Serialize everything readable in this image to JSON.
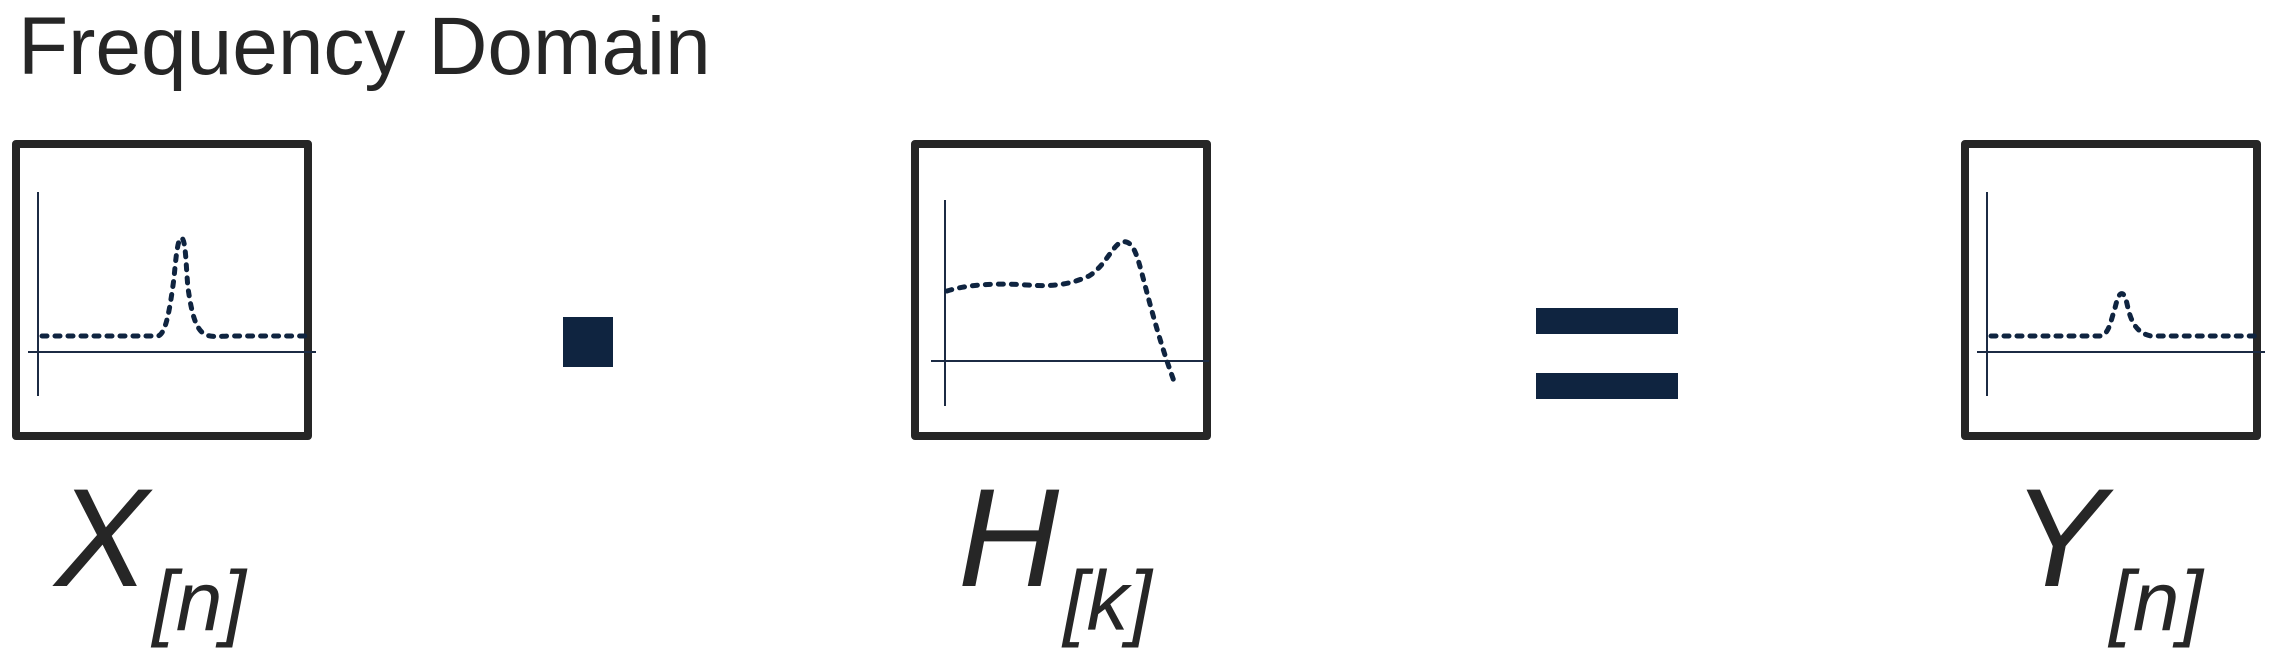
{
  "title": "Frequency Domain",
  "variables": {
    "x": {
      "main": "X",
      "sub": "[n]"
    },
    "h": {
      "main": "H",
      "sub": "[k]"
    },
    "y": {
      "main": "Y",
      "sub": "[n]"
    }
  },
  "operators": {
    "first": "multiply-dot",
    "second": "equals"
  },
  "colors": {
    "text": "#262626",
    "accent": "#0f2440",
    "axis": "#1c2b44"
  }
}
